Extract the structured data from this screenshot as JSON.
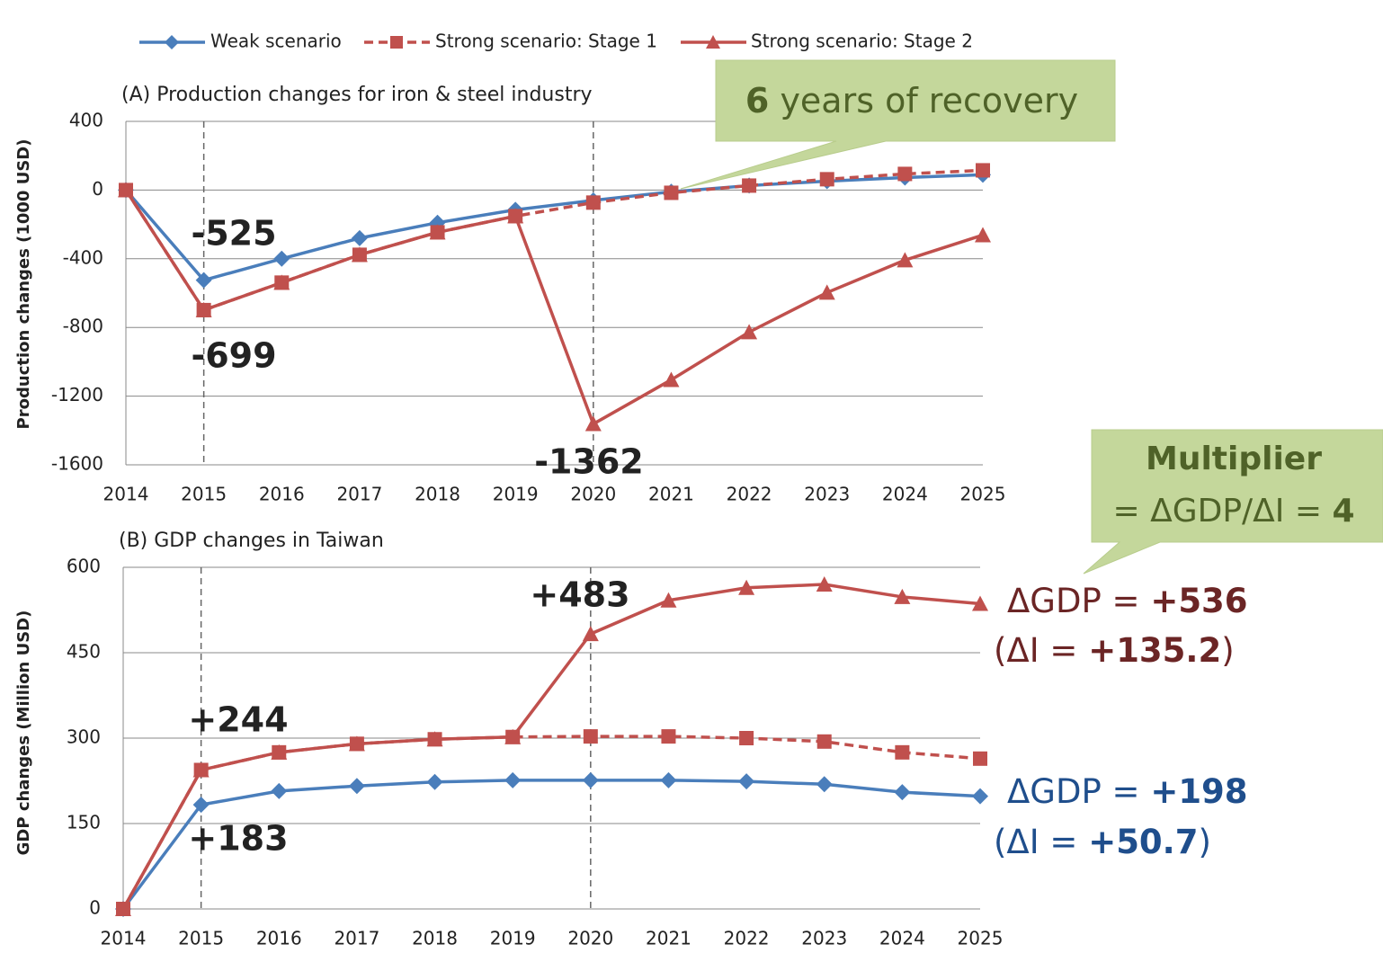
{
  "chart_data": [
    {
      "type": "line",
      "title": "(A) Production changes for iron & steel industry",
      "ylabel": "Production changes (1000 USD)",
      "x": [
        2014,
        2015,
        2016,
        2017,
        2018,
        2019,
        2020,
        2021,
        2022,
        2023,
        2024,
        2025
      ],
      "xlim": [
        2014,
        2025
      ],
      "xticks": [
        2014,
        2015,
        2016,
        2017,
        2018,
        2019,
        2020,
        2021,
        2022,
        2023,
        2024,
        2025
      ],
      "ylim": [
        -1600,
        400
      ],
      "yticks": [
        -1600,
        -1200,
        -800,
        -400,
        0,
        400
      ],
      "grid": true,
      "vlines": [
        2015,
        2020
      ],
      "series": [
        {
          "name": "Weak scenario",
          "color": "#4a7ebb",
          "marker": "diamond",
          "linestyle": "solid",
          "values": [
            0,
            -525,
            -400,
            -280,
            -190,
            -115,
            -60,
            -10,
            26,
            52,
            73,
            89
          ]
        },
        {
          "name": "Strong scenario: Stage 1",
          "color": "#c0504d",
          "marker": "square",
          "linestyle": "dashed",
          "values": [
            0,
            -699,
            -539,
            -377,
            -246,
            -152,
            -73,
            -16,
            26,
            63,
            94,
            115
          ]
        },
        {
          "name": "Strong scenario: Stage 2",
          "color": "#c0504d",
          "marker": "triangle",
          "linestyle": "solid",
          "values": [
            0,
            -699,
            -539,
            -377,
            -246,
            -152,
            -1362,
            -1105,
            -827,
            -597,
            -408,
            -262
          ]
        }
      ],
      "annotations": [
        {
          "text": "-525",
          "color": "#1f4e8c"
        },
        {
          "text": "-699",
          "color": "#6b2525"
        },
        {
          "text": "-1362",
          "color": "#6b2525"
        }
      ],
      "callout": {
        "bold": "6",
        "text": " years of recovery"
      }
    },
    {
      "type": "line",
      "title": "(B) GDP changes in Taiwan",
      "ylabel": "GDP changes (Million USD)",
      "x": [
        2014,
        2015,
        2016,
        2017,
        2018,
        2019,
        2020,
        2021,
        2022,
        2023,
        2024,
        2025
      ],
      "xlim": [
        2014,
        2025
      ],
      "xticks": [
        2014,
        2015,
        2016,
        2017,
        2018,
        2019,
        2020,
        2021,
        2022,
        2023,
        2024,
        2025
      ],
      "ylim": [
        0,
        600
      ],
      "yticks": [
        0,
        150,
        300,
        450,
        600
      ],
      "grid": true,
      "vlines": [
        2015,
        2020
      ],
      "series": [
        {
          "color": "#4a7ebb",
          "marker": "diamond",
          "linestyle": "solid",
          "values": [
            0,
            183,
            207,
            216,
            223,
            226,
            226,
            226,
            224,
            219,
            205,
            198
          ]
        },
        {
          "color": "#c0504d",
          "marker": "square",
          "linestyle": "dashed",
          "values": [
            0,
            244,
            275,
            290,
            298,
            302,
            303,
            303,
            300,
            294,
            275,
            264
          ]
        },
        {
          "color": "#c0504d",
          "marker": "triangle",
          "linestyle": "solid",
          "values": [
            0,
            244,
            275,
            290,
            298,
            302,
            483,
            542,
            564,
            570,
            548,
            536
          ]
        }
      ],
      "annotations": [
        {
          "text": "+244",
          "color": "#6b2525"
        },
        {
          "text": "+183",
          "color": "#1f4e8c"
        },
        {
          "text": "+483",
          "color": "#6b2525"
        }
      ],
      "end_labels": [
        {
          "color": "#6b2525",
          "lines": [
            {
              "text": "ΔGDP = ",
              "bold": "+536",
              "end": ""
            },
            {
              "text": "(ΔI = ",
              "bold": "+135.2",
              "end": ")"
            }
          ]
        },
        {
          "color": "#1f4e8c",
          "lines": [
            {
              "text": "ΔGDP = ",
              "bold": "+198",
              "end": ""
            },
            {
              "text": "(ΔI = ",
              "bold": "+50.7",
              "end": ")"
            }
          ]
        }
      ],
      "callout": {
        "title": "Multiplier",
        "text": "= ΔGDP/ΔI = ",
        "bold": "4"
      }
    }
  ]
}
